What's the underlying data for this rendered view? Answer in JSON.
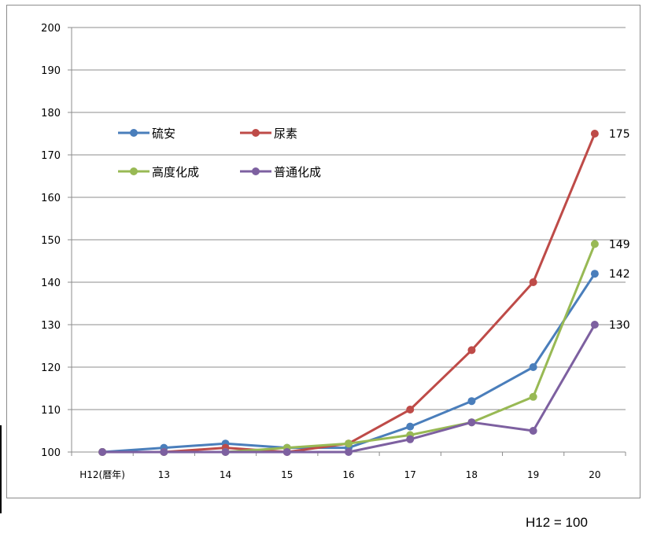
{
  "chart_data": {
    "type": "line",
    "categories": [
      "H12(暦年)",
      "13",
      "14",
      "15",
      "16",
      "17",
      "18",
      "19",
      "20"
    ],
    "series": [
      {
        "name": "硫安",
        "color": "#4a7ebb",
        "values": [
          100,
          101,
          102,
          101,
          101,
          106,
          112,
          120,
          142
        ]
      },
      {
        "name": "尿素",
        "color": "#be4b48",
        "values": [
          100,
          100,
          101,
          100,
          102,
          110,
          124,
          140,
          175
        ]
      },
      {
        "name": "高度化成",
        "color": "#98b954",
        "values": [
          100,
          100,
          100,
          101,
          102,
          104,
          107,
          113,
          149
        ]
      },
      {
        "name": "普通化成",
        "color": "#7d60a0",
        "values": [
          100,
          100,
          100,
          100,
          100,
          103,
          107,
          105,
          130
        ]
      }
    ],
    "ylim": [
      100,
      200
    ],
    "yticks": [
      100,
      110,
      120,
      130,
      140,
      150,
      160,
      170,
      180,
      190,
      200
    ],
    "end_labels": [
      "175",
      "149",
      "142",
      "130"
    ],
    "grid": true,
    "legend_position": "top-left",
    "xlabel": "",
    "ylabel": "",
    "title": ""
  },
  "footnote": "H12 = 100"
}
